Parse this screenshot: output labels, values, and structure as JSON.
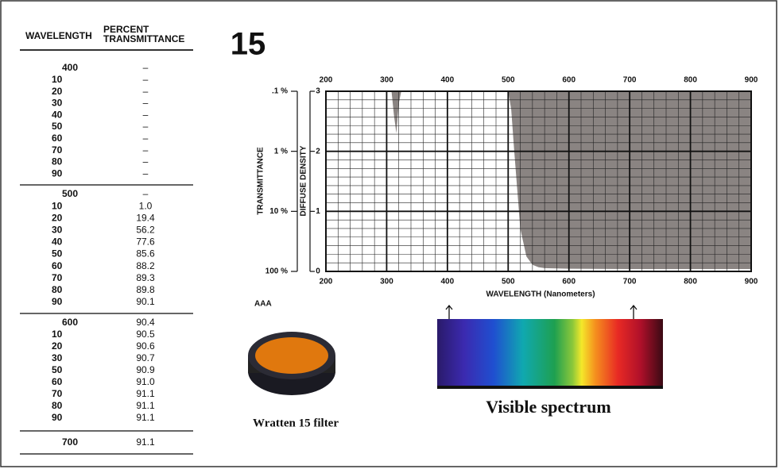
{
  "table": {
    "header": {
      "wavelength": "WAVELENGTH",
      "percent": "PERCENT",
      "transmittance": "TRANSMITTANCE"
    },
    "groups": [
      [
        [
          "400",
          "–"
        ],
        [
          "10",
          "–"
        ],
        [
          "20",
          "–"
        ],
        [
          "30",
          "–"
        ],
        [
          "40",
          "–"
        ],
        [
          "50",
          "–"
        ],
        [
          "60",
          "–"
        ],
        [
          "70",
          "–"
        ],
        [
          "80",
          "–"
        ],
        [
          "90",
          "–"
        ]
      ],
      [
        [
          "500",
          "–"
        ],
        [
          "10",
          "1.0"
        ],
        [
          "20",
          "19.4"
        ],
        [
          "30",
          "56.2"
        ],
        [
          "40",
          "77.6"
        ],
        [
          "50",
          "85.6"
        ],
        [
          "60",
          "88.2"
        ],
        [
          "70",
          "89.3"
        ],
        [
          "80",
          "89.8"
        ],
        [
          "90",
          "90.1"
        ]
      ],
      [
        [
          "600",
          "90.4"
        ],
        [
          "10",
          "90.5"
        ],
        [
          "20",
          "90.6"
        ],
        [
          "30",
          "90.7"
        ],
        [
          "50",
          "90.9"
        ],
        [
          "60",
          "91.0"
        ],
        [
          "70",
          "91.1"
        ],
        [
          "80",
          "91.1"
        ],
        [
          "90",
          "91.1"
        ]
      ],
      [
        [
          "700",
          "91.1"
        ]
      ]
    ]
  },
  "chart_data": {
    "type": "area",
    "title": "15",
    "xlabel": "WAVELENGTH (Nanometers)",
    "ylabel": "DIFFUSE DENSITY",
    "y2label": "TRANSMITTANCE",
    "x": [
      200,
      300,
      308,
      312,
      316,
      320,
      324,
      500,
      505,
      510,
      520,
      530,
      540,
      550,
      560,
      580,
      600,
      700,
      800,
      900
    ],
    "values": [
      3,
      3,
      3,
      2.6,
      2.3,
      2.8,
      3,
      3,
      2.7,
      2,
      0.71,
      0.25,
      0.11,
      0.07,
      0.055,
      0.05,
      0.044,
      0.04,
      0.04,
      0.04
    ],
    "color": "#8a8482",
    "xlim": [
      200,
      900
    ],
    "xticks": [
      200,
      300,
      400,
      500,
      600,
      700,
      800,
      900
    ],
    "ylim": [
      0,
      3
    ],
    "yticks": [
      0,
      1,
      2,
      3
    ],
    "y2ticks": [
      {
        "value": 3,
        "label": ".1 %"
      },
      {
        "value": 2,
        "label": "1 %"
      },
      {
        "value": 1,
        "label": "10 %"
      },
      {
        "value": 0,
        "label": "100 %"
      }
    ],
    "grid": true,
    "annotation": "AAA"
  },
  "captions": {
    "filter": "Wratten 15 filter",
    "spectrum": "Visible spectrum"
  }
}
